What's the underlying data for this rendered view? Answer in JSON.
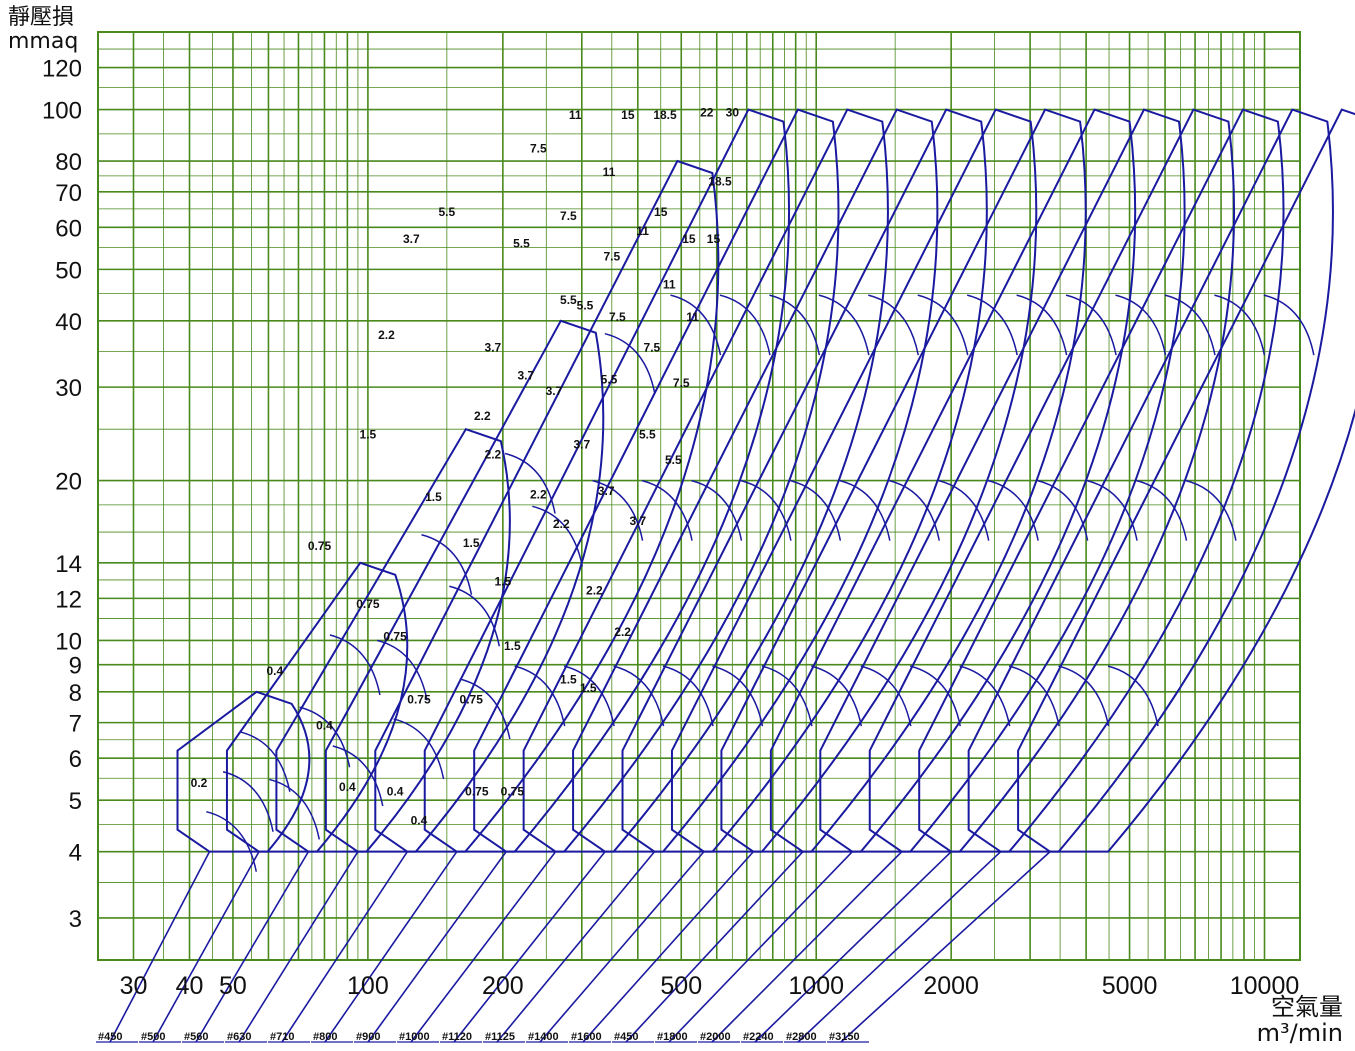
{
  "chart_data": {
    "type": "line",
    "ylabel": "靜壓損",
    "yunit": "mmaq",
    "xlabel": "空氣量",
    "xunit": "m³/min",
    "x_scale": "log",
    "y_scale": "log",
    "xlim": [
      25,
      12000
    ],
    "ylim": [
      2.5,
      140
    ],
    "x_ticks": [
      30,
      40,
      50,
      100,
      200,
      500,
      1000,
      2000,
      5000,
      10000
    ],
    "y_ticks": [
      3,
      4,
      5,
      6,
      7,
      8,
      9,
      10,
      12,
      14,
      20,
      30,
      40,
      50,
      60,
      70,
      80,
      100,
      120
    ],
    "grid": true,
    "grid_color": "#4a8a1c",
    "curve_color": "#1a1aa0",
    "models": [
      "#450",
      "#500",
      "#560",
      "#630",
      "#710",
      "#800",
      "#900",
      "#1000",
      "#1120",
      "#1125",
      "#1400",
      "#1600",
      "#450",
      "#1800",
      "#2000",
      "#2240",
      "#2800",
      "#3150"
    ],
    "envelopes": [
      {
        "top": 8,
        "right": 0.5
      },
      {
        "top": 14,
        "right": 0.55
      },
      {
        "top": 25,
        "right": 0.6
      },
      {
        "top": 40,
        "right": 0.62
      },
      {
        "top": 80,
        "right": 0.65
      },
      {
        "top": 100,
        "right": 0.7
      },
      {
        "top": 100,
        "right": 0.7
      },
      {
        "top": 100,
        "right": 0.7
      },
      {
        "top": 100,
        "right": 0.7
      },
      {
        "top": 100,
        "right": 0.7
      },
      {
        "top": 100,
        "right": 0.7
      },
      {
        "top": 100,
        "right": 0.7
      },
      {
        "top": 100,
        "right": 0.7
      },
      {
        "top": 100,
        "right": 0.7
      },
      {
        "top": 100,
        "right": 0.7
      },
      {
        "top": 100,
        "right": 0.7
      },
      {
        "top": 100,
        "right": 0.7
      },
      {
        "top": 100,
        "right": 0.7
      }
    ],
    "kw_labels": [
      {
        "t": "0.2",
        "x": 42,
        "y": 5.3
      },
      {
        "t": "0.4",
        "x": 62,
        "y": 8.6
      },
      {
        "t": "0.75",
        "x": 78,
        "y": 14.8
      },
      {
        "t": "1.5",
        "x": 100,
        "y": 24
      },
      {
        "t": "2.2",
        "x": 110,
        "y": 37
      },
      {
        "t": "3.7",
        "x": 125,
        "y": 56
      },
      {
        "t": "5.5",
        "x": 150,
        "y": 63
      },
      {
        "t": "0.4",
        "x": 80,
        "y": 6.8
      },
      {
        "t": "0.75",
        "x": 100,
        "y": 11.5
      },
      {
        "t": "1.5",
        "x": 140,
        "y": 18.3
      },
      {
        "t": "2.2",
        "x": 180,
        "y": 26
      },
      {
        "t": "3.7",
        "x": 190,
        "y": 35
      },
      {
        "t": "5.5",
        "x": 220,
        "y": 55
      },
      {
        "t": "7.5",
        "x": 240,
        "y": 83
      },
      {
        "t": "0.4",
        "x": 90,
        "y": 5.2
      },
      {
        "t": "0.75",
        "x": 115,
        "y": 10
      },
      {
        "t": "1.5",
        "x": 170,
        "y": 15
      },
      {
        "t": "2.2",
        "x": 190,
        "y": 22
      },
      {
        "t": "3.7",
        "x": 225,
        "y": 31
      },
      {
        "t": "5.5",
        "x": 280,
        "y": 43
      },
      {
        "t": "7.5",
        "x": 280,
        "y": 62
      },
      {
        "t": "11",
        "x": 290,
        "y": 96
      },
      {
        "t": "0.4",
        "x": 115,
        "y": 5.1
      },
      {
        "t": "0.75",
        "x": 130,
        "y": 7.6
      },
      {
        "t": "1.5",
        "x": 200,
        "y": 12.7
      },
      {
        "t": "2.2",
        "x": 240,
        "y": 18.5
      },
      {
        "t": "3.7",
        "x": 260,
        "y": 29
      },
      {
        "t": "5.5",
        "x": 305,
        "y": 42
      },
      {
        "t": "7.5",
        "x": 350,
        "y": 52
      },
      {
        "t": "11",
        "x": 345,
        "y": 75
      },
      {
        "t": "15",
        "x": 380,
        "y": 96
      },
      {
        "t": "0.4",
        "x": 130,
        "y": 4.5
      },
      {
        "t": "0.75",
        "x": 170,
        "y": 7.6
      },
      {
        "t": "1.5",
        "x": 210,
        "y": 9.6
      },
      {
        "t": "2.2",
        "x": 270,
        "y": 16.3
      },
      {
        "t": "3.7",
        "x": 300,
        "y": 23
      },
      {
        "t": "5.5",
        "x": 345,
        "y": 30.5
      },
      {
        "t": "7.5",
        "x": 360,
        "y": 40
      },
      {
        "t": "11",
        "x": 410,
        "y": 58
      },
      {
        "t": "15",
        "x": 450,
        "y": 63
      },
      {
        "t": "18.5",
        "x": 460,
        "y": 96
      },
      {
        "t": "0.75",
        "x": 175,
        "y": 5.1
      },
      {
        "t": "1.5",
        "x": 280,
        "y": 8.3
      },
      {
        "t": "2.2",
        "x": 320,
        "y": 12.2
      },
      {
        "t": "3.7",
        "x": 340,
        "y": 18.8
      },
      {
        "t": "5.5",
        "x": 420,
        "y": 24
      },
      {
        "t": "7.5",
        "x": 430,
        "y": 35
      },
      {
        "t": "11",
        "x": 470,
        "y": 46
      },
      {
        "t": "15",
        "x": 520,
        "y": 56
      },
      {
        "t": "22",
        "x": 570,
        "y": 97
      },
      {
        "t": "0.75",
        "x": 210,
        "y": 5.1
      },
      {
        "t": "1.5",
        "x": 310,
        "y": 8
      },
      {
        "t": "2.2",
        "x": 370,
        "y": 10.2
      },
      {
        "t": "3.7",
        "x": 400,
        "y": 16.5
      },
      {
        "t": "5.5",
        "x": 480,
        "y": 21.5
      },
      {
        "t": "7.5",
        "x": 500,
        "y": 30
      },
      {
        "t": "11",
        "x": 530,
        "y": 40
      },
      {
        "t": "15",
        "x": 590,
        "y": 56
      },
      {
        "t": "18.5",
        "x": 610,
        "y": 72
      },
      {
        "t": "30",
        "x": 650,
        "y": 97
      }
    ],
    "x_label_texts": [
      "30",
      "40",
      "50",
      "100",
      "200",
      "500",
      "1000",
      "2000",
      "5000",
      "10000"
    ],
    "y_label_texts": [
      "3",
      "4",
      "5",
      "6",
      "7",
      "8",
      "9",
      "10",
      "12",
      "14",
      "20",
      "30",
      "40",
      "50",
      "60",
      "70",
      "80",
      "100",
      "120"
    ]
  }
}
